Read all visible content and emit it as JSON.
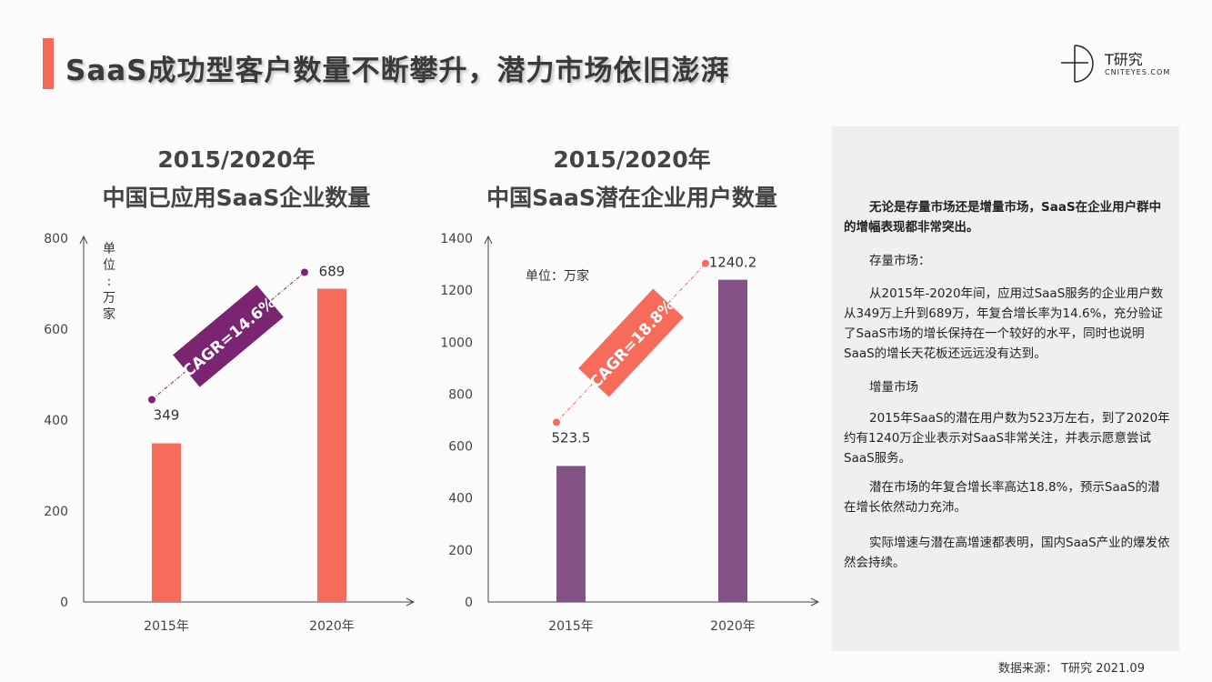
{
  "header": {
    "title": "SaaS成功型客户数量不断攀升，潜力市场依旧澎湃",
    "logo_cn": "T研究",
    "logo_en": "CNITEYES.COM"
  },
  "chart_data": [
    {
      "type": "bar",
      "title_line1": "2015/2020年",
      "title_line2": "中国已应用SaaS企业数量",
      "categories": [
        "2015年",
        "2020年"
      ],
      "values": [
        349,
        689
      ],
      "data_labels": [
        "349",
        "689"
      ],
      "ylim": [
        0,
        800
      ],
      "yticks": [
        "0",
        "200",
        "400",
        "600",
        "800"
      ],
      "unit_label": "单位：万家",
      "annotation": "CAGR=14.6%",
      "color": "#f76b5b",
      "annotation_color": "#7b2472",
      "grid": false
    },
    {
      "type": "bar",
      "title_line1": "2015/2020年",
      "title_line2": "中国SaaS潜在企业用户数量",
      "categories": [
        "2015年",
        "2020年"
      ],
      "values": [
        523.5,
        1240.2
      ],
      "data_labels": [
        "523.5",
        "1240.2"
      ],
      "ylim": [
        0,
        1400
      ],
      "yticks": [
        "0",
        "200",
        "400",
        "600",
        "800",
        "1000",
        "1200",
        "1400"
      ],
      "unit_label": "单位：万家",
      "annotation": "CAGR=18.8%",
      "color": "#855285",
      "annotation_color": "#f76b5b",
      "grid": false
    }
  ],
  "panel": {
    "paragraphs": [
      "无论是存量市场还是增量市场，SaaS在企业用户群中的增幅表现都非常突出。",
      "存量市场：",
      "从2015年-2020年间，应用过SaaS服务的企业用户数从349万上升到689万，年复合增长率为14.6%，充分验证了SaaS市场的增长保持在一个较好的水平，同时也说明SaaS的增长天花板还远远没有达到。",
      "增量市场",
      "2015年SaaS的潜在用户数为523万左右，到了2020年约有1240万企业表示对SaaS非常关注，并表示愿意尝试SaaS服务。",
      "潜在市场的年复合增长率高达18.8%，预示SaaS的潜在增长依然动力充沛。",
      "实际增速与潜在高增速都表明，国内SaaS产业的爆发依然会持续。"
    ]
  },
  "source": "数据来源： T研究 2021.09"
}
